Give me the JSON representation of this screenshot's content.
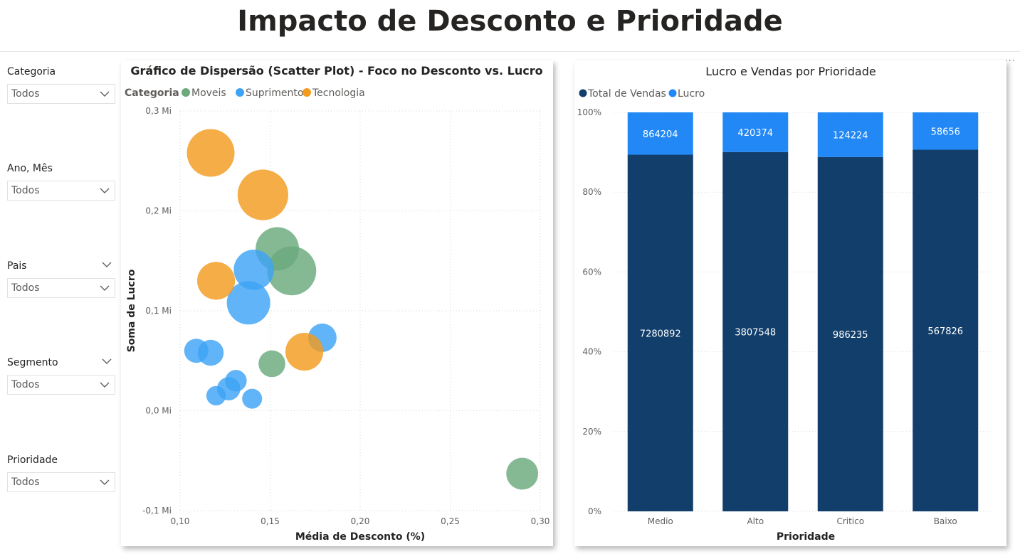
{
  "page": {
    "title": "Impacto de Desconto e Prioridade"
  },
  "slicers": [
    {
      "title": "Categoria",
      "value": "Todos",
      "header_chevron": false
    },
    {
      "title": "Ano, Mês",
      "value": "Todos",
      "header_chevron": false
    },
    {
      "title": "Pais",
      "value": "Todos",
      "header_chevron": true
    },
    {
      "title": "Segmento",
      "value": "Todos",
      "header_chevron": true
    },
    {
      "title": "Prioridade",
      "value": "Todos",
      "header_chevron": false
    }
  ],
  "chart_data": [
    {
      "type": "scatter",
      "title": "Gráfico de Dispersão (Scatter Plot) - Foco no Desconto vs. Lucro",
      "xlabel": "Média de Desconto (%)",
      "ylabel": "Soma de Lucro",
      "xlim": [
        0.1,
        0.3
      ],
      "ylim": [
        -0.1,
        0.3
      ],
      "x_ticks": [
        "0,10",
        "0,15",
        "0,20",
        "0,25",
        "0,30"
      ],
      "y_ticks": [
        "-0,1 Mi",
        "0,0 Mi",
        "0,1 Mi",
        "0,2 Mi",
        "0,3 Mi"
      ],
      "legend_title": "Categoria",
      "legend_position": "top-left",
      "grid": true,
      "series": [
        {
          "name": "Moveis",
          "color": "#6aaa7c",
          "points": [
            {
              "x": 0.154,
              "y": 0.162,
              "size": 0.75
            },
            {
              "x": 0.162,
              "y": 0.14,
              "size": 0.88
            },
            {
              "x": 0.151,
              "y": 0.047,
              "size": 0.36
            },
            {
              "x": 0.29,
              "y": -0.063,
              "size": 0.48
            }
          ]
        },
        {
          "name": "Suprimentos",
          "color": "#3ea3f5",
          "points": [
            {
              "x": 0.141,
              "y": 0.141,
              "size": 0.68
            },
            {
              "x": 0.138,
              "y": 0.108,
              "size": 0.75
            },
            {
              "x": 0.179,
              "y": 0.073,
              "size": 0.4
            },
            {
              "x": 0.109,
              "y": 0.06,
              "size": 0.3
            },
            {
              "x": 0.117,
              "y": 0.058,
              "size": 0.34
            },
            {
              "x": 0.131,
              "y": 0.03,
              "size": 0.24
            },
            {
              "x": 0.127,
              "y": 0.022,
              "size": 0.28
            },
            {
              "x": 0.12,
              "y": 0.015,
              "size": 0.19
            },
            {
              "x": 0.14,
              "y": 0.012,
              "size": 0.2
            }
          ]
        },
        {
          "name": "Tecnologia",
          "color": "#f39b1e",
          "points": [
            {
              "x": 0.117,
              "y": 0.258,
              "size": 0.85
            },
            {
              "x": 0.146,
              "y": 0.216,
              "size": 0.92
            },
            {
              "x": 0.12,
              "y": 0.13,
              "size": 0.62
            },
            {
              "x": 0.169,
              "y": 0.059,
              "size": 0.62
            }
          ]
        }
      ]
    },
    {
      "type": "bar",
      "subtype": "100% stacked column",
      "title": "Lucro e Vendas por Prioridade",
      "xlabel": "Prioridade",
      "ylabel": "",
      "ylim": [
        0,
        1
      ],
      "y_ticks": [
        "0%",
        "20%",
        "40%",
        "60%",
        "80%",
        "100%"
      ],
      "categories": [
        "Medio",
        "Alto",
        "Critico",
        "Baixo"
      ],
      "legend_position": "top-left",
      "grid": true,
      "series": [
        {
          "name": "Total de Vendas",
          "color": "#123e6b",
          "values": [
            7280892,
            3807548,
            986235,
            567826
          ]
        },
        {
          "name": "Lucro",
          "color": "#2188f5",
          "values": [
            864204,
            420374,
            124224,
            58656
          ]
        }
      ]
    }
  ]
}
